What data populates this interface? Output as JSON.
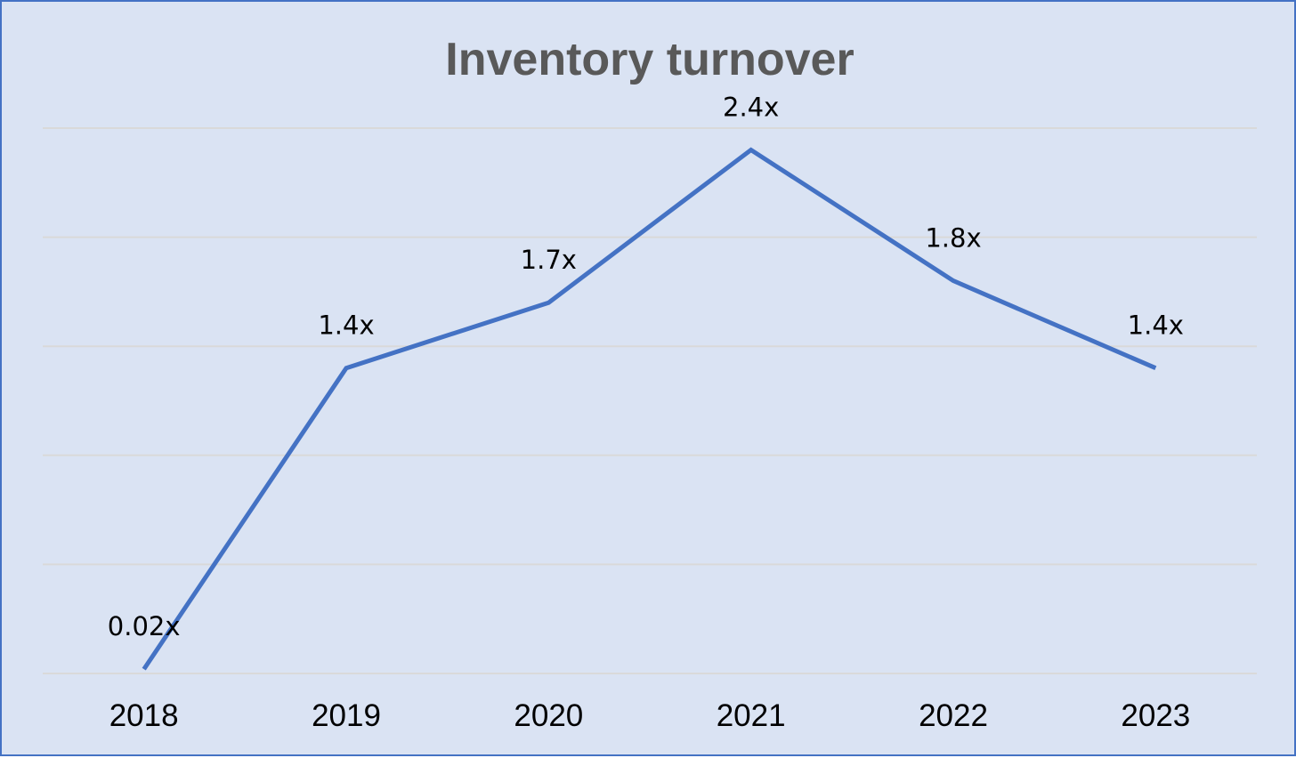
{
  "chart_data": {
    "type": "line",
    "title": "Inventory turnover",
    "categories": [
      "2018",
      "2019",
      "2020",
      "2021",
      "2022",
      "2023"
    ],
    "series": [
      {
        "values": [
          0.02,
          1.4,
          1.7,
          2.4,
          1.8,
          1.4
        ],
        "labels": [
          "0.02x",
          "1.4x",
          "1.7x",
          "2.4x",
          "1.8x",
          "1.4x"
        ],
        "color": "#4472c4"
      }
    ],
    "ylim": [
      0,
      2.5
    ],
    "gridlines": [
      0,
      0.5,
      1.0,
      1.5,
      2.0,
      2.5
    ],
    "grid": true,
    "legend": false,
    "xlabel": "",
    "ylabel": ""
  },
  "colors": {
    "background": "#dae3f3",
    "border": "#4472c4",
    "line": "#4472c4",
    "grid": "#d9d9d9",
    "title": "#595959"
  }
}
